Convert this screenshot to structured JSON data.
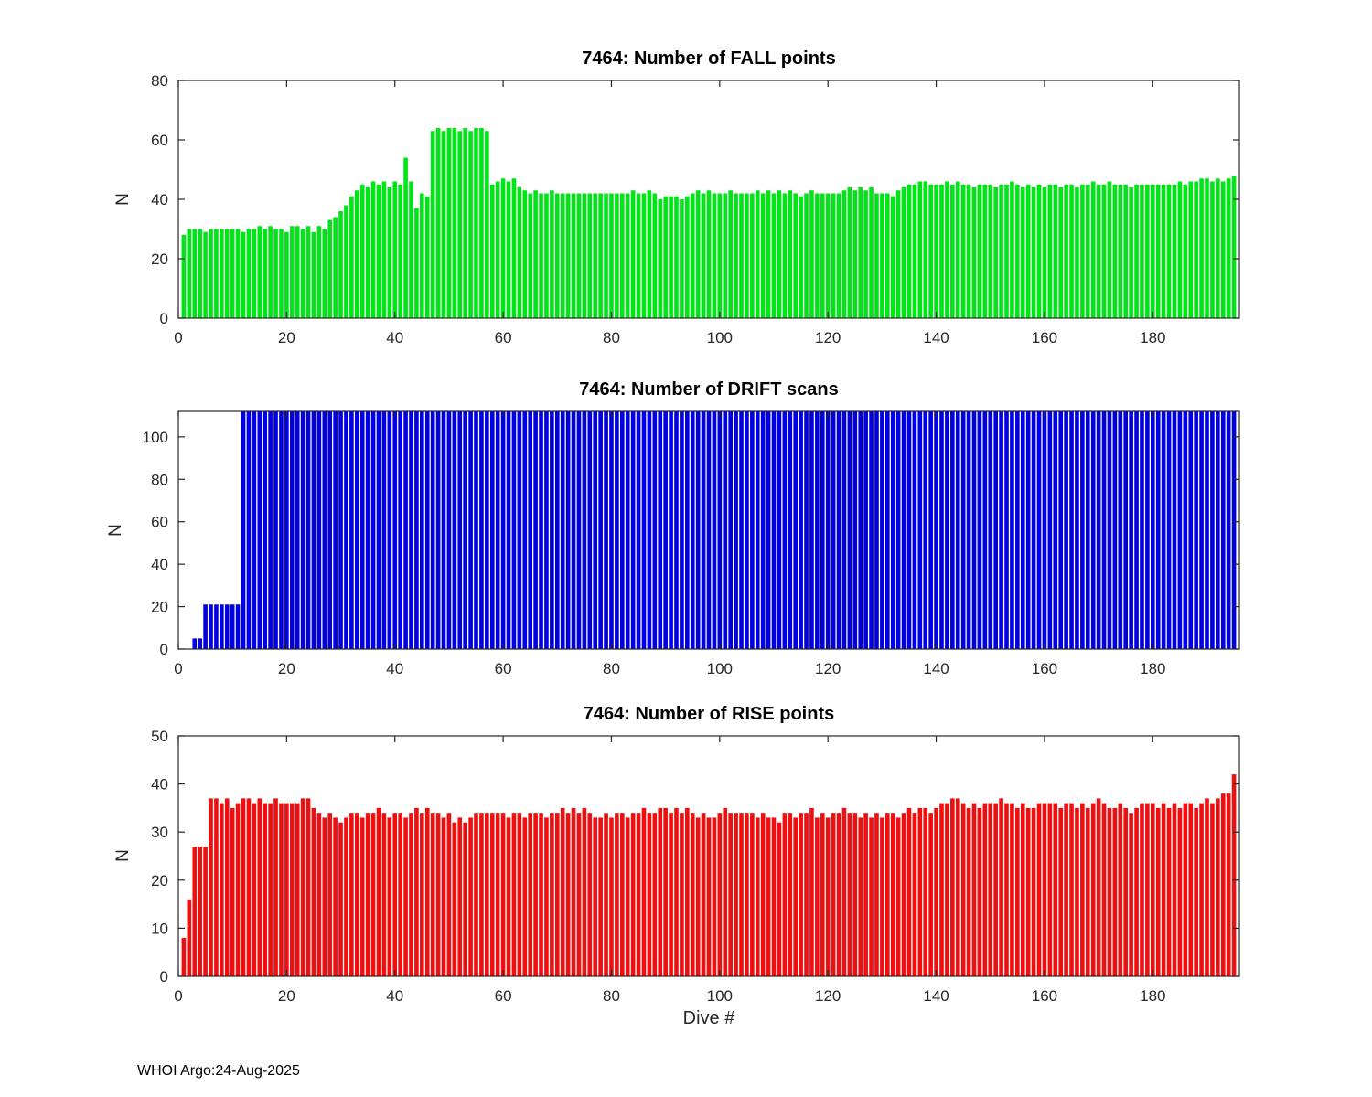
{
  "figure": {
    "footer": "WHOI Argo:24-Aug-2025",
    "xlabel": "Dive #",
    "background": "#ffffff",
    "axis_color": "#262626"
  },
  "chart_data": [
    {
      "type": "bar",
      "title": "7464: Number of FALL points",
      "ylabel": "N",
      "color": "#00e418",
      "xlim": [
        0,
        196
      ],
      "ylim": [
        0,
        80
      ],
      "yticks": [
        0,
        20,
        40,
        60,
        80
      ],
      "xticks": [
        0,
        20,
        40,
        60,
        80,
        100,
        120,
        140,
        160,
        180
      ],
      "x_start": 1,
      "values": [
        28,
        30,
        30,
        30,
        29,
        30,
        30,
        30,
        30,
        30,
        30,
        29,
        30,
        30,
        31,
        30,
        31,
        30,
        30,
        29,
        31,
        31,
        30,
        31,
        29,
        31,
        30,
        33,
        34,
        36,
        38,
        41,
        43,
        45,
        44,
        46,
        45,
        46,
        44,
        46,
        45,
        54,
        46,
        37,
        42,
        41,
        63,
        64,
        63,
        64,
        64,
        63,
        64,
        63,
        64,
        64,
        63,
        45,
        46,
        47,
        46,
        47,
        44,
        43,
        42,
        43,
        42,
        42,
        43,
        42,
        42,
        42,
        42,
        42,
        42,
        42,
        42,
        42,
        42,
        42,
        42,
        42,
        42,
        43,
        42,
        42,
        43,
        42,
        40,
        41,
        41,
        41,
        40,
        41,
        42,
        43,
        42,
        43,
        42,
        42,
        42,
        43,
        42,
        42,
        42,
        42,
        43,
        42,
        43,
        42,
        43,
        42,
        43,
        42,
        41,
        42,
        43,
        42,
        42,
        42,
        42,
        42,
        43,
        44,
        43,
        44,
        43,
        44,
        42,
        42,
        42,
        41,
        43,
        44,
        45,
        45,
        46,
        46,
        45,
        45,
        45,
        46,
        45,
        46,
        45,
        45,
        44,
        45,
        45,
        45,
        44,
        45,
        45,
        46,
        45,
        44,
        45,
        44,
        45,
        44,
        45,
        45,
        44,
        45,
        45,
        44,
        45,
        45,
        46,
        45,
        45,
        46,
        45,
        45,
        45,
        44,
        45,
        45,
        45,
        45,
        45,
        45,
        45,
        45,
        46,
        45,
        46,
        46,
        47,
        47,
        46,
        47,
        46,
        47,
        48
      ]
    },
    {
      "type": "bar",
      "title": "7464: Number of DRIFT scans",
      "ylabel": "N",
      "color": "#0000e0",
      "xlim": [
        0,
        196
      ],
      "ylim": [
        0,
        112
      ],
      "yticks": [
        0,
        20,
        40,
        60,
        80,
        100
      ],
      "xticks": [
        0,
        20,
        40,
        60,
        80,
        100,
        120,
        140,
        160,
        180
      ],
      "x_start": 1,
      "values": [
        0,
        0,
        5,
        5,
        21,
        21,
        21,
        21,
        21,
        21,
        21,
        112,
        112,
        112,
        112,
        112,
        112,
        112,
        112,
        112,
        112,
        112,
        112,
        112,
        112,
        112,
        112,
        112,
        112,
        112,
        112,
        112,
        112,
        112,
        112,
        112,
        112,
        112,
        112,
        112,
        112,
        112,
        112,
        112,
        112,
        112,
        112,
        112,
        112,
        112,
        112,
        112,
        112,
        112,
        112,
        112,
        112,
        112,
        112,
        112,
        112,
        112,
        112,
        112,
        112,
        112,
        112,
        112,
        112,
        112,
        112,
        112,
        112,
        112,
        112,
        112,
        112,
        112,
        112,
        112,
        112,
        112,
        112,
        112,
        112,
        112,
        112,
        112,
        112,
        112,
        112,
        112,
        112,
        112,
        112,
        112,
        112,
        112,
        112,
        112,
        112,
        112,
        112,
        112,
        112,
        112,
        112,
        112,
        112,
        112,
        112,
        112,
        112,
        112,
        112,
        112,
        112,
        112,
        112,
        112,
        112,
        112,
        112,
        112,
        112,
        112,
        112,
        112,
        112,
        112,
        112,
        112,
        112,
        112,
        112,
        112,
        112,
        112,
        112,
        112,
        112,
        112,
        112,
        112,
        112,
        112,
        112,
        112,
        112,
        112,
        112,
        112,
        112,
        112,
        112,
        112,
        112,
        112,
        112,
        112,
        112,
        112,
        112,
        112,
        112,
        112,
        112,
        112,
        112,
        112,
        112,
        112,
        112,
        112,
        112,
        112,
        112,
        112,
        112,
        112,
        112,
        112,
        112,
        112,
        112,
        112,
        112,
        112,
        112,
        112,
        112,
        112,
        112,
        112,
        112
      ]
    },
    {
      "type": "bar",
      "title": "7464: Number of RISE points",
      "ylabel": "N",
      "color": "#ee1010",
      "xlim": [
        0,
        196
      ],
      "ylim": [
        0,
        50
      ],
      "yticks": [
        0,
        10,
        20,
        30,
        40,
        50
      ],
      "xticks": [
        0,
        20,
        40,
        60,
        80,
        100,
        120,
        140,
        160,
        180
      ],
      "x_start": 1,
      "values": [
        8,
        16,
        27,
        27,
        27,
        37,
        37,
        36,
        37,
        35,
        36,
        37,
        37,
        36,
        37,
        36,
        36,
        37,
        36,
        36,
        36,
        36,
        37,
        37,
        35,
        34,
        33,
        34,
        33,
        32,
        33,
        34,
        34,
        33,
        34,
        34,
        35,
        34,
        33,
        34,
        34,
        33,
        34,
        35,
        34,
        35,
        34,
        34,
        33,
        34,
        32,
        33,
        32,
        33,
        34,
        34,
        34,
        34,
        34,
        34,
        33,
        34,
        34,
        33,
        34,
        34,
        34,
        33,
        34,
        34,
        35,
        34,
        35,
        34,
        35,
        34,
        33,
        33,
        34,
        33,
        34,
        34,
        33,
        34,
        34,
        35,
        34,
        34,
        35,
        35,
        34,
        35,
        34,
        35,
        34,
        33,
        34,
        33,
        33,
        34,
        35,
        34,
        34,
        34,
        34,
        34,
        33,
        34,
        33,
        33,
        32,
        34,
        34,
        33,
        34,
        34,
        35,
        33,
        34,
        33,
        34,
        34,
        35,
        34,
        34,
        33,
        34,
        33,
        34,
        33,
        34,
        34,
        33,
        34,
        35,
        34,
        35,
        35,
        34,
        35,
        36,
        36,
        37,
        37,
        36,
        35,
        36,
        35,
        36,
        36,
        36,
        37,
        36,
        36,
        35,
        36,
        35,
        35,
        36,
        36,
        36,
        36,
        35,
        36,
        36,
        35,
        36,
        35,
        36,
        37,
        36,
        35,
        35,
        36,
        35,
        34,
        35,
        36,
        36,
        36,
        35,
        36,
        35,
        36,
        35,
        36,
        36,
        35,
        36,
        37,
        36,
        37,
        38,
        38,
        42
      ]
    }
  ]
}
